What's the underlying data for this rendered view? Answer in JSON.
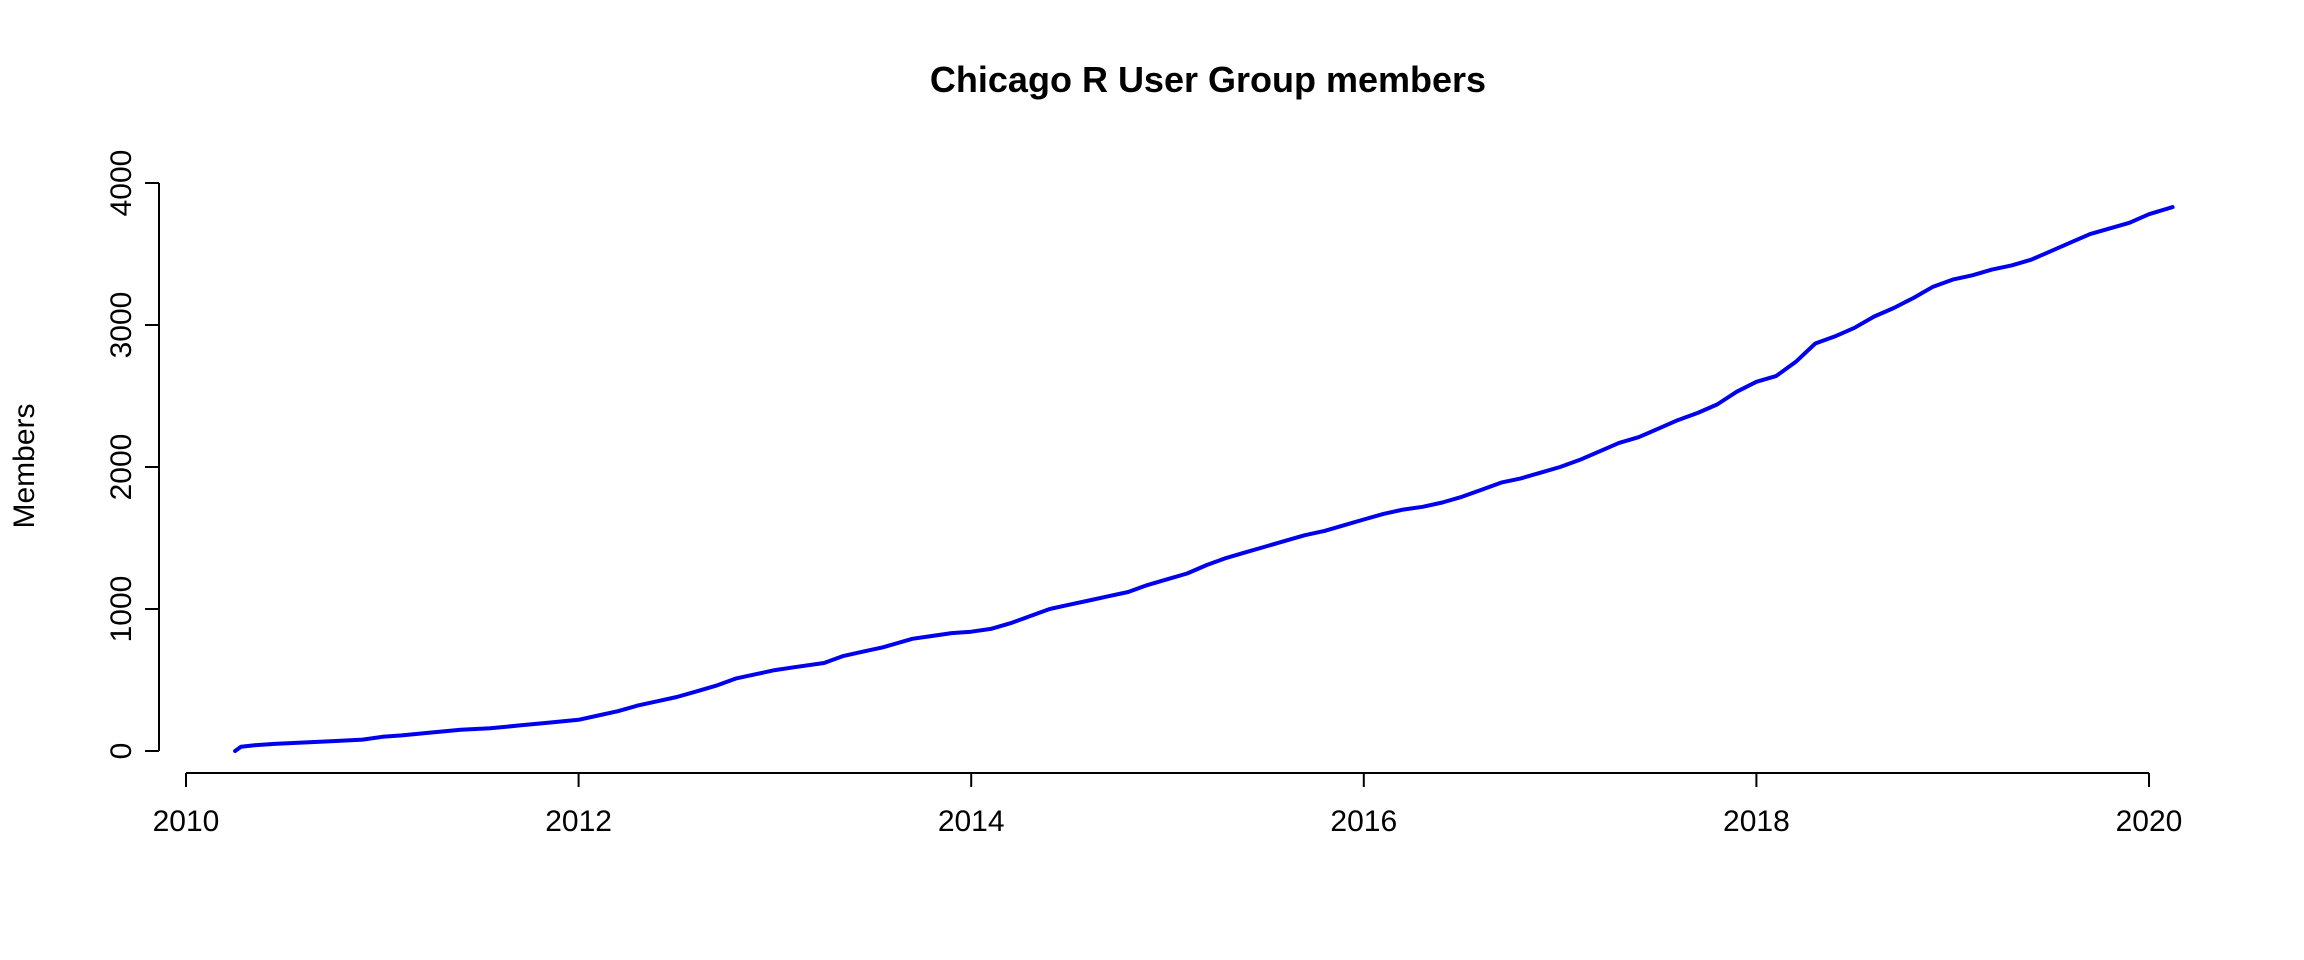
{
  "chart_data": {
    "type": "line",
    "title": "Chicago R User Group members",
    "xlabel": "",
    "ylabel": "Members",
    "xlim": [
      2010,
      2020
    ],
    "ylim": [
      0,
      4000
    ],
    "x_ticks": [
      2010,
      2012,
      2014,
      2016,
      2018,
      2020
    ],
    "y_ticks": [
      0,
      1000,
      2000,
      3000,
      4000
    ],
    "x_tick_labels": [
      "2010",
      "2012",
      "2014",
      "2016",
      "2018",
      "2020"
    ],
    "y_tick_labels": [
      "0",
      "1000",
      "2000",
      "3000",
      "4000"
    ],
    "grid": false,
    "series": [
      {
        "color": "#0000ee",
        "x": [
          2010.25,
          2010.28,
          2010.35,
          2010.45,
          2010.6,
          2010.75,
          2010.9,
          2011.0,
          2011.1,
          2011.25,
          2011.4,
          2011.55,
          2011.7,
          2011.85,
          2012.0,
          2012.1,
          2012.2,
          2012.3,
          2012.4,
          2012.5,
          2012.6,
          2012.7,
          2012.8,
          2012.9,
          2013.0,
          2013.1,
          2013.25,
          2013.35,
          2013.45,
          2013.55,
          2013.7,
          2013.8,
          2013.9,
          2014.0,
          2014.1,
          2014.2,
          2014.3,
          2014.4,
          2014.5,
          2014.6,
          2014.7,
          2014.8,
          2014.9,
          2015.0,
          2015.1,
          2015.2,
          2015.3,
          2015.4,
          2015.5,
          2015.6,
          2015.7,
          2015.8,
          2015.9,
          2016.0,
          2016.1,
          2016.2,
          2016.3,
          2016.4,
          2016.5,
          2016.6,
          2016.7,
          2016.8,
          2016.9,
          2017.0,
          2017.1,
          2017.2,
          2017.3,
          2017.4,
          2017.5,
          2017.6,
          2017.7,
          2017.8,
          2017.9,
          2018.0,
          2018.1,
          2018.2,
          2018.3,
          2018.4,
          2018.5,
          2018.6,
          2018.7,
          2018.8,
          2018.9,
          2019.0,
          2019.1,
          2019.2,
          2019.3,
          2019.4,
          2019.5,
          2019.6,
          2019.7,
          2019.8,
          2019.9,
          2020.0,
          2020.12
        ],
        "y": [
          0,
          30,
          40,
          50,
          60,
          70,
          80,
          100,
          110,
          130,
          150,
          160,
          180,
          200,
          220,
          250,
          280,
          320,
          350,
          380,
          420,
          460,
          510,
          540,
          570,
          590,
          620,
          670,
          700,
          730,
          790,
          810,
          830,
          840,
          860,
          900,
          950,
          1000,
          1030,
          1060,
          1090,
          1120,
          1170,
          1210,
          1250,
          1310,
          1360,
          1400,
          1440,
          1480,
          1520,
          1550,
          1590,
          1630,
          1670,
          1700,
          1720,
          1750,
          1790,
          1840,
          1890,
          1920,
          1960,
          2000,
          2050,
          2110,
          2170,
          2210,
          2270,
          2330,
          2380,
          2440,
          2530,
          2600,
          2640,
          2740,
          2870,
          2920,
          2980,
          3060,
          3120,
          3190,
          3270,
          3320,
          3350,
          3390,
          3420,
          3460,
          3520,
          3580,
          3640,
          3680,
          3720,
          3780,
          3830
        ]
      }
    ]
  }
}
